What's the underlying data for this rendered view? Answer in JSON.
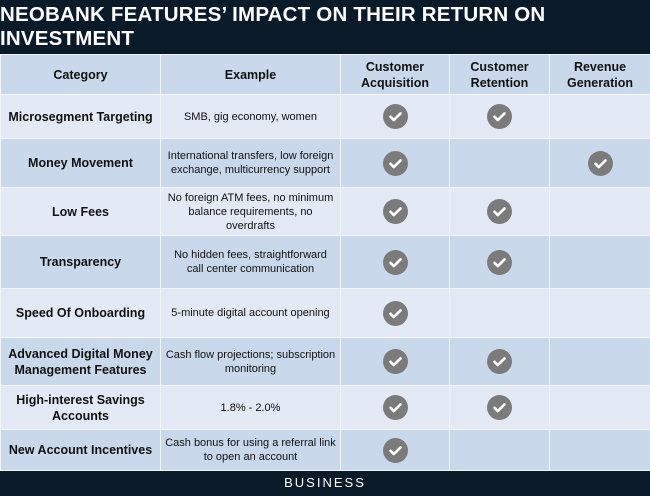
{
  "title": "NEOBANK FEATURES’ IMPACT ON THEIR RETURN ON INVESTMENT",
  "headers": [
    "Category",
    "Example",
    "Customer Acquisition",
    "Customer Retention",
    "Revenue Generation"
  ],
  "rows": [
    {
      "category": "Microsegment Targeting",
      "example": "SMB, gig economy, women",
      "acquisition": true,
      "retention": true,
      "revenue": false
    },
    {
      "category": "Money Movement",
      "example": "International transfers, low foreign exchange, multicurrency support",
      "acquisition": true,
      "retention": false,
      "revenue": true
    },
    {
      "category": "Low Fees",
      "example": "No foreign ATM fees, no minimum balance requirements, no overdrafts",
      "acquisition": true,
      "retention": true,
      "revenue": false
    },
    {
      "category": "Transparency",
      "example": "No hidden fees, straightforward call center communication",
      "acquisition": true,
      "retention": true,
      "revenue": false
    },
    {
      "category": "Speed Of Onboarding",
      "example": "5-minute digital account opening",
      "acquisition": true,
      "retention": false,
      "revenue": false
    },
    {
      "category": "Advanced Digital Money Management Features",
      "example": "Cash flow projections; subscription monitoring",
      "acquisition": true,
      "retention": true,
      "revenue": false
    },
    {
      "category": "High-interest Savings Accounts",
      "example": "1.8% - 2.0%",
      "acquisition": true,
      "retention": true,
      "revenue": false
    },
    {
      "category": "New Account Incentives",
      "example": "Cash bonus for using a referral link to open an account",
      "acquisition": true,
      "retention": false,
      "revenue": false
    }
  ],
  "footer": "BUSINESS",
  "colors": {
    "title_bg": "#0b1a28",
    "header_bg": "#c9d8ea",
    "row_light": "#e3eaf5",
    "check": "#7b7b7b"
  }
}
